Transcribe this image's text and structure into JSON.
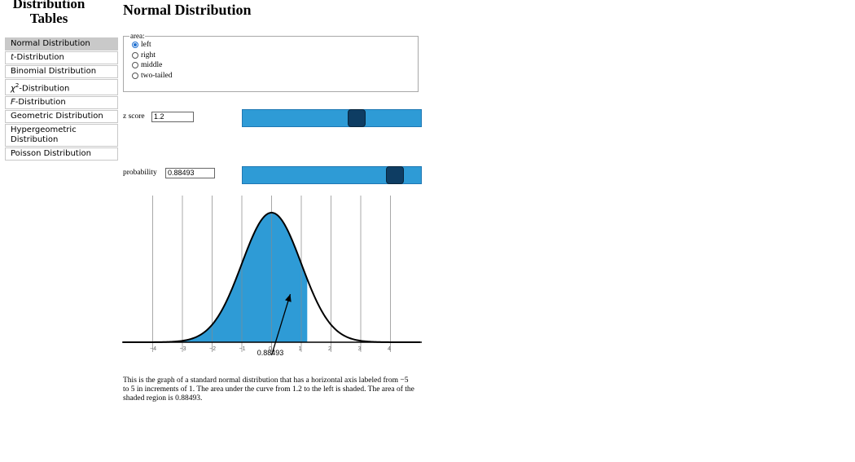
{
  "sidebar": {
    "title_line1": "Distribution",
    "title_line2": "Tables",
    "items": [
      {
        "label": "Normal Distribution",
        "active": true
      },
      {
        "prefix": "t",
        "label": "-Distribution"
      },
      {
        "label": "Binomial Distribution"
      },
      {
        "prefix": "χ",
        "sup": "2",
        "label": "-Distribution"
      },
      {
        "prefix": "F",
        "label": "-Distribution"
      },
      {
        "label": "Geometric Distribution"
      },
      {
        "label": "Hypergeometric Distribution"
      },
      {
        "label": "Poisson Distribution"
      }
    ]
  },
  "page": {
    "title": "Normal Distribution"
  },
  "area": {
    "legend": "area:",
    "options": [
      {
        "label": "left",
        "checked": true
      },
      {
        "label": "right",
        "checked": false
      },
      {
        "label": "middle",
        "checked": false
      },
      {
        "label": "two-tailed",
        "checked": false
      }
    ]
  },
  "zscore": {
    "label": "z score",
    "value": "1.2",
    "slider_min": -4,
    "slider_max": 4,
    "slider_value": 1.2
  },
  "probability": {
    "label": "probability",
    "value": "0.88493",
    "slider_min": 0,
    "slider_max": 1,
    "slider_value": 0.88493
  },
  "chart_data": {
    "type": "area",
    "distribution": "standard normal",
    "mean": 0,
    "sd": 1,
    "xlim": [
      -5,
      5
    ],
    "x_ticks": [
      -4,
      -3,
      -2,
      -1,
      0,
      1,
      2,
      3,
      4
    ],
    "x_tick_labels": [
      "−4",
      "−3",
      "−2",
      "−1",
      "0",
      "1",
      "2",
      "3",
      "4"
    ],
    "shaded_region": "left",
    "shade_to": 1.2,
    "area_label": "0.88493",
    "grid": true
  },
  "description": "This is the graph of a standard normal distribution that has a horizontal axis labeled from −5 to 5 in increments of 1. The area under the curve from 1.2 to the left is shaded. The area of the shaded region is 0.88493.",
  "colors": {
    "shade": "#2e9bd6",
    "slider_track": "#2e9bd6",
    "slider_handle": "#0e3d63",
    "active_nav": "#c9c9c9"
  }
}
